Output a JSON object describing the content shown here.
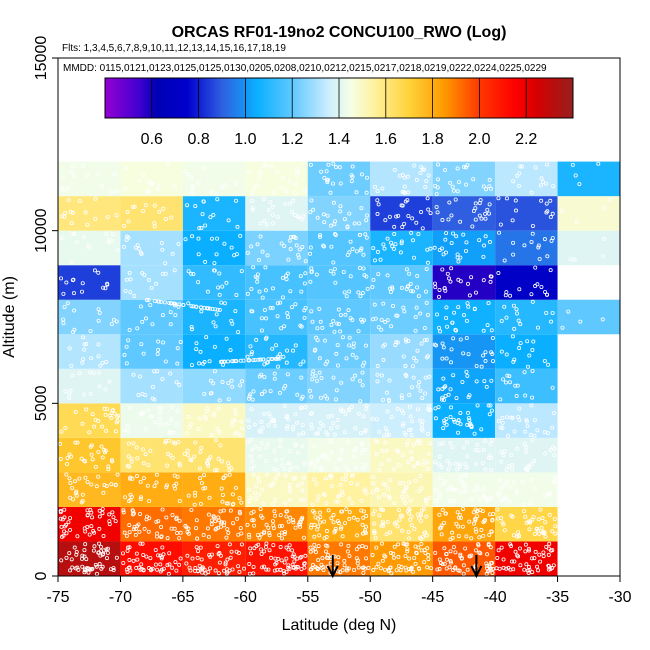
{
  "chart_data": {
    "type": "heatmap",
    "title": "ORCAS RF01-19no2 CONCU100_RWO (Log)",
    "flights_label": "Flts: 1,3,4,5,6,7,8,9,10,11,12,13,14,15,16,17,18,19",
    "dates_label": "MMDD: 0115,0121,0123,0125,0125,0130,0205,0208,0210,0212,0215,0217,0218,0219,0222,0224,0225,0229",
    "xlabel": "Latitude (deg N)",
    "ylabel": "Altitude (m)",
    "xlim": [
      -75,
      -30
    ],
    "ylim": [
      0,
      15000
    ],
    "x_ticks": [
      "-75",
      "-70",
      "-65",
      "-60",
      "-55",
      "-50",
      "-45",
      "-40",
      "-35",
      "-30"
    ],
    "x_tick_values": [
      -75,
      -70,
      -65,
      -60,
      -55,
      -50,
      -45,
      -40,
      -35,
      -30
    ],
    "y_ticks": [
      "0",
      "5000",
      "10000",
      "15000"
    ],
    "y_tick_values": [
      0,
      5000,
      10000,
      15000
    ],
    "colorbar": {
      "range": [
        0.4,
        2.4
      ],
      "ticks": [
        "0.6",
        "0.8",
        "1.0",
        "1.2",
        "1.4",
        "1.6",
        "1.8",
        "2.0",
        "2.2"
      ],
      "tick_values": [
        0.6,
        0.8,
        1.0,
        1.2,
        1.4,
        1.6,
        1.8,
        2.0,
        2.2
      ],
      "stops": [
        [
          0.4,
          "#9400d3"
        ],
        [
          0.55,
          "#3f00d0"
        ],
        [
          0.62,
          "#0000b5"
        ],
        [
          0.75,
          "#0000cd"
        ],
        [
          0.9,
          "#2f5fe0"
        ],
        [
          1.05,
          "#0ab0ff"
        ],
        [
          1.2,
          "#5fc8ff"
        ],
        [
          1.35,
          "#c9ecff"
        ],
        [
          1.45,
          "#f5ffe6"
        ],
        [
          1.55,
          "#fff2a0"
        ],
        [
          1.7,
          "#ffd23a"
        ],
        [
          1.85,
          "#ff9a00"
        ],
        [
          2.0,
          "#ff3800"
        ],
        [
          2.15,
          "#ff0000"
        ],
        [
          2.25,
          "#d40000"
        ],
        [
          2.4,
          "#962020"
        ]
      ]
    },
    "x_bin_edges": [
      -75,
      -70,
      -65,
      -60,
      -55,
      -50,
      -45,
      -40,
      -35,
      -30
    ],
    "y_bin_edges": [
      0,
      1000,
      2000,
      3000,
      4000,
      5000,
      6000,
      7000,
      8000,
      9000,
      10000,
      11000,
      12000
    ],
    "grid_values": [
      [
        2.32,
        2.12,
        2.07,
        2.1,
        1.9,
        1.85,
        1.95,
        2.18,
        null
      ],
      [
        2.18,
        1.92,
        1.9,
        1.88,
        1.8,
        1.62,
        1.82,
        1.68,
        null
      ],
      [
        1.77,
        1.8,
        1.8,
        1.5,
        1.55,
        1.52,
        1.44,
        1.44,
        null
      ],
      [
        1.73,
        1.62,
        1.62,
        1.42,
        1.44,
        1.5,
        1.4,
        1.4,
        null
      ],
      [
        1.66,
        1.43,
        1.5,
        1.38,
        1.38,
        1.36,
        1.05,
        1.33,
        null
      ],
      [
        1.4,
        1.3,
        1.27,
        1.22,
        1.25,
        1.3,
        1.03,
        1.14,
        null
      ],
      [
        1.32,
        1.2,
        1.05,
        1.1,
        1.22,
        1.28,
        1.0,
        1.05,
        null
      ],
      [
        1.25,
        1.2,
        1.08,
        1.16,
        1.2,
        1.22,
        1.06,
        1.1,
        1.2
      ],
      [
        0.85,
        1.3,
        1.12,
        1.16,
        1.18,
        1.2,
        0.58,
        0.72,
        null
      ],
      [
        1.42,
        1.3,
        1.05,
        1.24,
        1.18,
        1.08,
        1.02,
        0.94,
        1.4
      ],
      [
        1.6,
        1.62,
        1.08,
        1.4,
        1.25,
        0.85,
        0.9,
        0.88,
        1.48
      ],
      [
        1.44,
        1.46,
        1.44,
        1.46,
        1.22,
        1.32,
        1.25,
        1.33,
        1.08
      ]
    ],
    "arrows_latitude": [
      -53,
      -41.5
    ],
    "sample_points": "white open circles along flight tracks (density not quantified)"
  }
}
